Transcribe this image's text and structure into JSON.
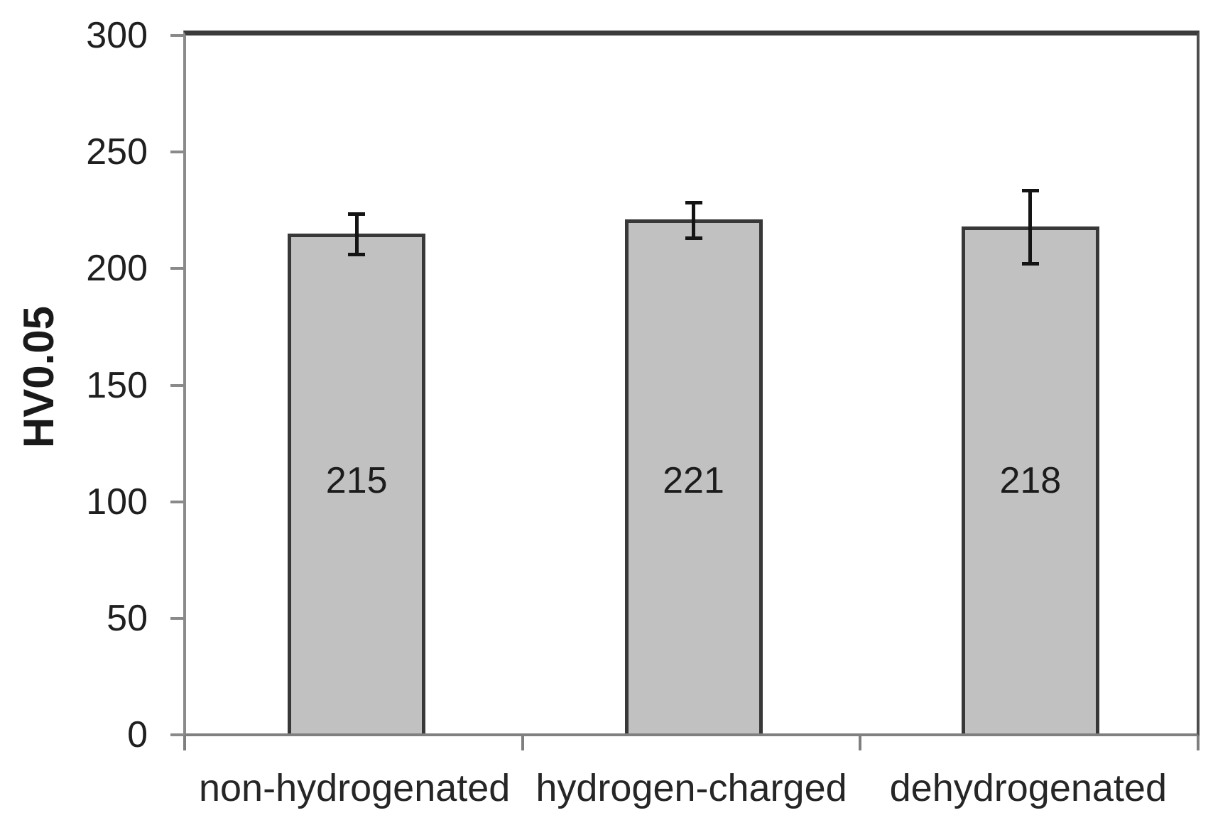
{
  "chart_data": {
    "type": "bar",
    "title": "",
    "categories": [
      "non-hydrogenated",
      "hydrogen-charged",
      "dehydrogenated"
    ],
    "values": [
      215,
      221,
      218
    ],
    "bar_value_labels": [
      "215",
      "221",
      "218"
    ],
    "error_bars": [
      {
        "upper": 224,
        "lower": 205
      },
      {
        "upper": 229,
        "lower": 212
      },
      {
        "upper": 234,
        "lower": 201
      }
    ],
    "xlabel": "",
    "ylabel": "HV0.05",
    "ylim": [
      0,
      300
    ],
    "yticks": [
      0,
      50,
      100,
      150,
      200,
      250,
      300
    ],
    "grid": "off",
    "legend": "none",
    "colors": {
      "bar_fill": "#c1c1c1",
      "bar_border": "#383838",
      "error_bar": "#141414",
      "axis_line": "#8a8a8a",
      "frame_top": "#3b3b3b",
      "text": "#1f1f1f",
      "background": "#ffffff"
    }
  }
}
